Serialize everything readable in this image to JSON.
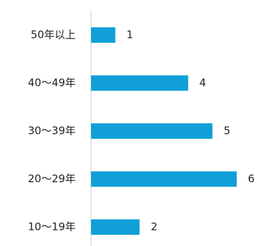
{
  "chart_data": {
    "type": "bar",
    "orientation": "horizontal",
    "categories": [
      "50年以上",
      "40〜49年",
      "30〜39年",
      "20〜29年",
      "10〜19年"
    ],
    "values": [
      1,
      4,
      5,
      6,
      2
    ],
    "title": "",
    "xlabel": "",
    "ylabel": "",
    "xlim": [
      0,
      6
    ],
    "grid": false,
    "legend": "none",
    "bar_color": "#119fd8"
  }
}
